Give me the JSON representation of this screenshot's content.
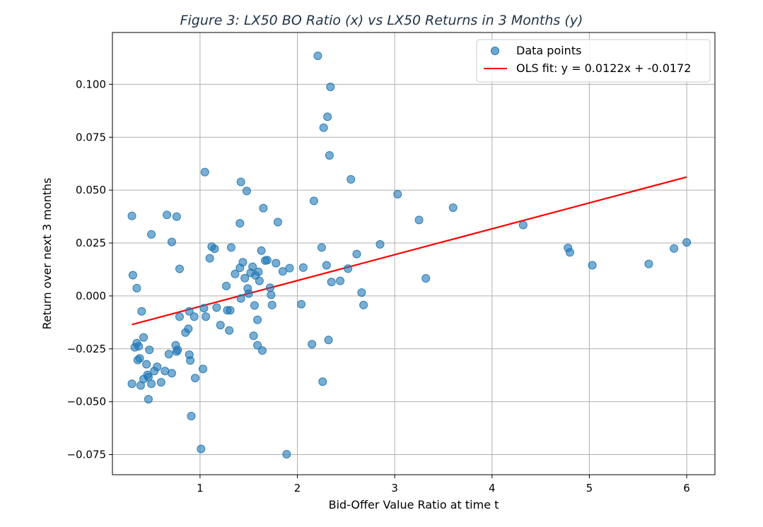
{
  "chart_data": {
    "type": "scatter",
    "title": "Figure 3: LX50 BO Ratio (x) vs LX50 Returns in 3 Months (y)",
    "xlabel": "Bid-Offer Value Ratio at time t",
    "ylabel": "Return over next 3 months",
    "xlim": [
      0.1,
      6.29
    ],
    "ylim": [
      -0.0845,
      0.1245
    ],
    "xticks": [
      1,
      2,
      3,
      4,
      5,
      6
    ],
    "xtick_labels": [
      "1",
      "2",
      "3",
      "4",
      "5",
      "6"
    ],
    "yticks": [
      -0.075,
      -0.05,
      -0.025,
      0.0,
      0.025,
      0.05,
      0.075,
      0.1
    ],
    "ytick_labels": [
      "−0.075",
      "−0.050",
      "−0.025",
      "0.000",
      "0.025",
      "0.050",
      "0.075",
      "0.100"
    ],
    "grid": true,
    "legend_position": "top-right",
    "colors": {
      "points": "#1f77b4",
      "fit": "#ff0000"
    },
    "series": [
      {
        "name": "Data points",
        "kind": "scatter",
        "points": [
          [
            0.3,
            0.0378
          ],
          [
            0.31,
            0.0098
          ],
          [
            0.35,
            0.0037
          ],
          [
            0.4,
            -0.0073
          ],
          [
            0.3,
            -0.0415
          ],
          [
            0.33,
            -0.0243
          ],
          [
            0.35,
            -0.0223
          ],
          [
            0.37,
            -0.0238
          ],
          [
            0.36,
            -0.0303
          ],
          [
            0.38,
            -0.0295
          ],
          [
            0.39,
            -0.0423
          ],
          [
            0.42,
            -0.0196
          ],
          [
            0.42,
            -0.0393
          ],
          [
            0.45,
            -0.0323
          ],
          [
            0.46,
            -0.0373
          ],
          [
            0.47,
            -0.0383
          ],
          [
            0.48,
            -0.0255
          ],
          [
            0.5,
            -0.0415
          ],
          [
            0.47,
            -0.0488
          ],
          [
            0.5,
            0.0291
          ],
          [
            0.53,
            -0.0355
          ],
          [
            0.56,
            -0.0335
          ],
          [
            0.6,
            -0.0408
          ],
          [
            0.64,
            -0.0355
          ],
          [
            0.68,
            -0.0275
          ],
          [
            0.71,
            -0.0365
          ],
          [
            0.75,
            -0.0233
          ],
          [
            0.76,
            -0.0263
          ],
          [
            0.77,
            -0.0255
          ],
          [
            0.79,
            -0.0098
          ],
          [
            0.79,
            0.0128
          ],
          [
            0.66,
            0.0383
          ],
          [
            0.71,
            0.0255
          ],
          [
            0.76,
            0.0375
          ],
          [
            0.85,
            -0.0173
          ],
          [
            0.88,
            -0.0155
          ],
          [
            0.89,
            -0.0073
          ],
          [
            0.89,
            -0.0278
          ],
          [
            0.9,
            -0.0305
          ],
          [
            0.91,
            -0.0568
          ],
          [
            0.94,
            -0.0098
          ],
          [
            0.95,
            -0.0388
          ],
          [
            1.01,
            -0.0723
          ],
          [
            1.03,
            -0.0345
          ],
          [
            1.04,
            -0.0058
          ],
          [
            1.05,
            0.0585
          ],
          [
            1.06,
            -0.0098
          ],
          [
            1.1,
            0.0178
          ],
          [
            1.12,
            0.0233
          ],
          [
            1.15,
            0.0223
          ],
          [
            1.17,
            -0.0055
          ],
          [
            1.21,
            -0.0138
          ],
          [
            1.27,
            0.0047
          ],
          [
            1.28,
            -0.0068
          ],
          [
            1.3,
            -0.0163
          ],
          [
            1.31,
            -0.0068
          ],
          [
            1.32,
            0.0229
          ],
          [
            1.36,
            0.0104
          ],
          [
            1.41,
            0.0343
          ],
          [
            1.41,
            0.0133
          ],
          [
            1.42,
            -0.0012
          ],
          [
            1.42,
            0.0539
          ],
          [
            1.44,
            0.0159
          ],
          [
            1.46,
            0.0084
          ],
          [
            1.48,
            0.0496
          ],
          [
            1.49,
            0.0035
          ],
          [
            1.5,
            0.0011
          ],
          [
            1.52,
            0.0109
          ],
          [
            1.54,
            0.0138
          ],
          [
            1.55,
            -0.0188
          ],
          [
            1.56,
            -0.0045
          ],
          [
            1.57,
            0.0097
          ],
          [
            1.59,
            -0.0113
          ],
          [
            1.59,
            -0.0233
          ],
          [
            1.6,
            0.0114
          ],
          [
            1.61,
            0.0071
          ],
          [
            1.63,
            0.0214
          ],
          [
            1.64,
            -0.0258
          ],
          [
            1.65,
            0.0415
          ],
          [
            1.67,
            0.0167
          ],
          [
            1.69,
            0.0169
          ],
          [
            1.72,
            0.0039
          ],
          [
            1.73,
            0.0005
          ],
          [
            1.74,
            -0.0043
          ],
          [
            1.78,
            0.0155
          ],
          [
            1.8,
            0.0349
          ],
          [
            1.85,
            0.0116
          ],
          [
            1.89,
            -0.0748
          ],
          [
            1.92,
            0.0131
          ],
          [
            2.04,
            -0.0039
          ],
          [
            2.06,
            0.0134
          ],
          [
            2.15,
            -0.0228
          ],
          [
            2.17,
            0.0449
          ],
          [
            2.21,
            0.1135
          ],
          [
            2.25,
            0.0229
          ],
          [
            2.26,
            -0.0405
          ],
          [
            2.27,
            0.0795
          ],
          [
            2.3,
            0.0145
          ],
          [
            2.31,
            0.0847
          ],
          [
            2.32,
            -0.0208
          ],
          [
            2.33,
            0.0664
          ],
          [
            2.34,
            0.0988
          ],
          [
            2.35,
            0.0066
          ],
          [
            2.44,
            0.0071
          ],
          [
            2.52,
            0.0129
          ],
          [
            2.55,
            0.0551
          ],
          [
            2.61,
            0.0198
          ],
          [
            2.66,
            0.0016
          ],
          [
            2.68,
            -0.0043
          ],
          [
            2.85,
            0.0244
          ],
          [
            3.03,
            0.0481
          ],
          [
            3.25,
            0.0359
          ],
          [
            3.32,
            0.0083
          ],
          [
            3.6,
            0.0417
          ],
          [
            4.32,
            0.0335
          ],
          [
            4.78,
            0.0227
          ],
          [
            4.8,
            0.0206
          ],
          [
            5.03,
            0.0145
          ],
          [
            5.61,
            0.0151
          ],
          [
            5.87,
            0.0224
          ],
          [
            6.0,
            0.0253
          ]
        ]
      },
      {
        "name": "OLS fit: y = 0.0122x + -0.0172",
        "kind": "line",
        "points": [
          [
            0.3,
            -0.01354
          ],
          [
            6.0,
            0.0562
          ]
        ]
      }
    ]
  }
}
